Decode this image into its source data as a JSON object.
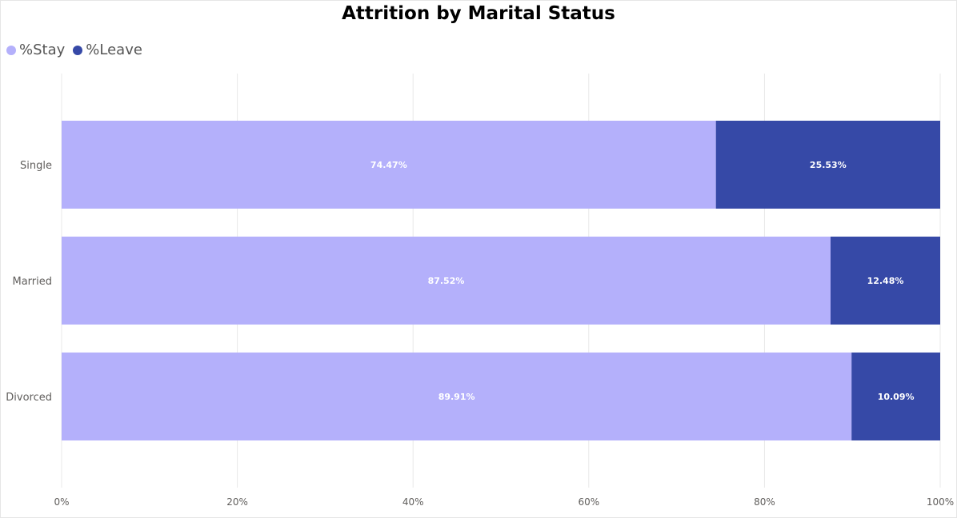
{
  "chart_data": {
    "type": "bar",
    "orientation": "horizontal",
    "stacked": "100%",
    "title": "Attrition by Marital Status",
    "categories": [
      "Single",
      "Married",
      "Divorced"
    ],
    "series": [
      {
        "name": "%Stay",
        "color": "#b4b0fb",
        "values": [
          74.47,
          87.52,
          89.91
        ],
        "labels": [
          "74.47%",
          "87.52%",
          "89.91%"
        ]
      },
      {
        "name": "%Leave",
        "color": "#3649a7",
        "values": [
          25.53,
          12.48,
          10.09
        ],
        "labels": [
          "25.53%",
          "12.48%",
          "10.09%"
        ]
      }
    ],
    "xlim": [
      0,
      100
    ],
    "x_ticks": [
      0,
      20,
      40,
      60,
      80,
      100
    ],
    "x_tick_labels": [
      "0%",
      "20%",
      "40%",
      "60%",
      "80%",
      "100%"
    ],
    "grid": true,
    "legend_position": "top-left"
  }
}
